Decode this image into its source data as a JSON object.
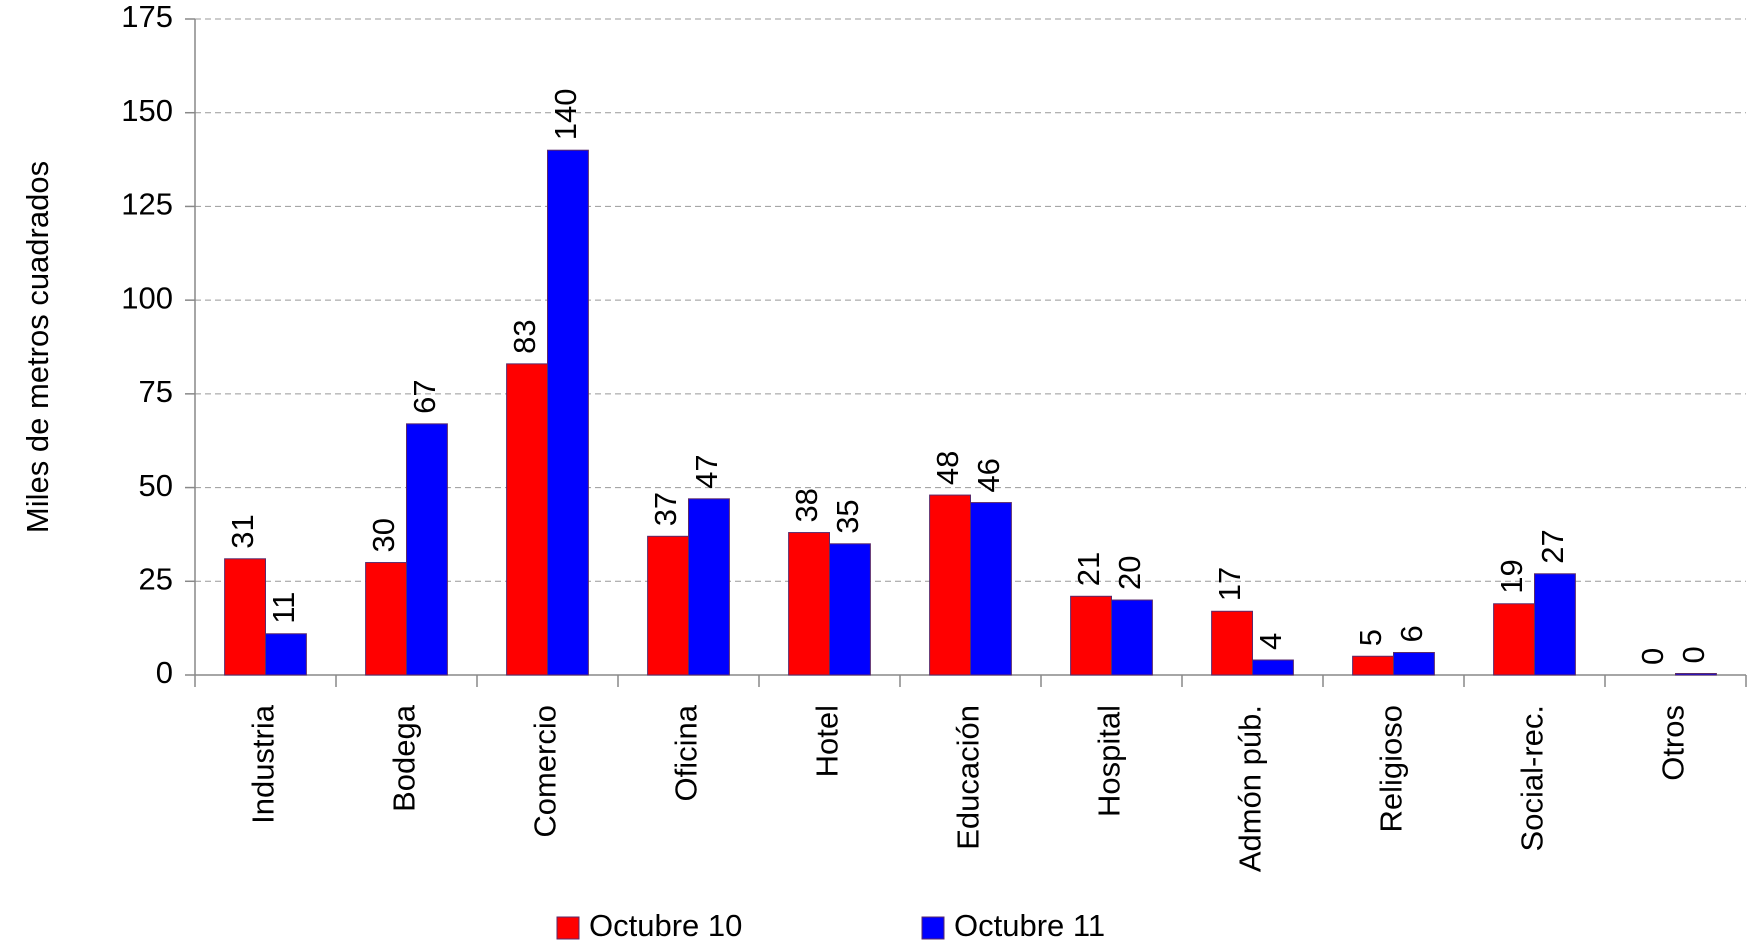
{
  "chart_data": {
    "type": "bar",
    "y_label": "Miles de metros cuadrados",
    "categories": [
      "Industria",
      "Bodega",
      "Comercio",
      "Oficina",
      "Hotel",
      "Educación",
      "Hospital",
      "Admón púb.",
      "Religioso",
      "Social-rec.",
      "Otros"
    ],
    "series": [
      {
        "name": "Octubre 10",
        "color": "#ff0000",
        "values": [
          31,
          30,
          83,
          37,
          38,
          48,
          21,
          17,
          5,
          19,
          0
        ]
      },
      {
        "name": "Octubre 11",
        "color": "#0000ff",
        "values": [
          11,
          67,
          140,
          47,
          35,
          46,
          20,
          4,
          6,
          27,
          0.4
        ],
        "value_labels": [
          "11",
          "67",
          "140",
          "47",
          "35",
          "46",
          "20",
          "4",
          "6",
          "27",
          "0"
        ]
      }
    ],
    "ylim": [
      0,
      175
    ],
    "yticks": [
      0,
      25,
      50,
      75,
      100,
      125,
      150,
      175
    ],
    "grid": true,
    "legend": "bottom"
  }
}
